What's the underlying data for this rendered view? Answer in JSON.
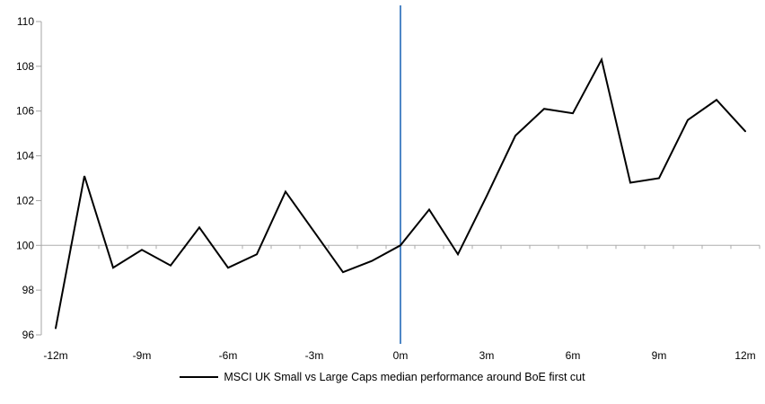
{
  "chart_data": {
    "type": "line",
    "legend": "MSCI UK Small vs Large Caps median performance around BoE first cut",
    "x": [
      -12,
      -11,
      -10,
      -9,
      -8,
      -7,
      -6,
      -5,
      -4,
      -3,
      -2,
      -1,
      0,
      1,
      2,
      3,
      4,
      5,
      6,
      7,
      8,
      9,
      10,
      11,
      12
    ],
    "values": [
      96.3,
      103.1,
      99.0,
      99.8,
      99.1,
      100.8,
      99.0,
      99.6,
      102.4,
      100.6,
      98.8,
      99.3,
      100.0,
      101.6,
      99.6,
      102.2,
      104.9,
      106.1,
      105.9,
      108.3,
      102.8,
      103.0,
      105.6,
      106.5,
      105.1
    ],
    "x_tick_labels": [
      {
        "month": -12,
        "label": "-12m"
      },
      {
        "month": -9,
        "label": "-9m"
      },
      {
        "month": -6,
        "label": "-6m"
      },
      {
        "month": -3,
        "label": "-3m"
      },
      {
        "month": 0,
        "label": "0m"
      },
      {
        "month": 3,
        "label": "3m"
      },
      {
        "month": 6,
        "label": "6m"
      },
      {
        "month": 9,
        "label": "9m"
      },
      {
        "month": 12,
        "label": "12m"
      }
    ],
    "y_ticks": [
      110,
      108,
      106,
      104,
      102,
      100,
      98,
      96
    ],
    "ylim": [
      96,
      110
    ],
    "baseline_value": 100,
    "event_line_month": 0,
    "grid": "off",
    "legend_position": "bottom-center",
    "colors": {
      "series_line": "#000000",
      "event_line": "#4E87C6",
      "axis_line": "#A6A6A6",
      "baseline_line": "#ADADAD",
      "tick_text": "#000000"
    }
  }
}
